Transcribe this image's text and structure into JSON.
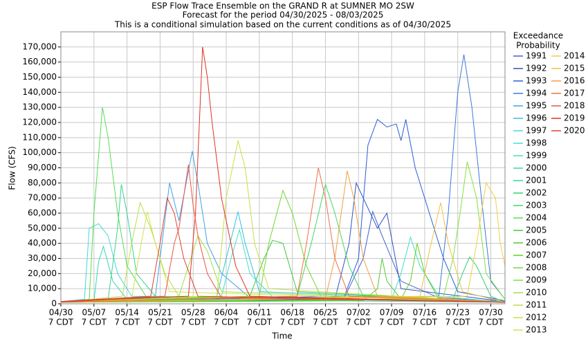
{
  "chart_data": {
    "type": "line",
    "title": "ESP Flow Trace Ensemble on the GRAND R at SUMNER MO 2SW",
    "subtitle": [
      "Forecast for the period 04/30/2025 - 08/03/2025",
      "This is a conditional simulation based on the current conditions as of 04/30/2025"
    ],
    "xlabel": "Time",
    "ylabel": "Flow (CFS)",
    "legend_title": [
      "Exceedance",
      "Probability"
    ],
    "grid": true,
    "xlim": [
      0,
      94
    ],
    "ylim": [
      0,
      180000
    ],
    "xtick_sublabel": "7 CDT",
    "xticks": [
      {
        "value": 0,
        "label": "04/30"
      },
      {
        "value": 7,
        "label": "05/07"
      },
      {
        "value": 14,
        "label": "05/14"
      },
      {
        "value": 21,
        "label": "05/21"
      },
      {
        "value": 28,
        "label": "05/28"
      },
      {
        "value": 35,
        "label": "06/04"
      },
      {
        "value": 42,
        "label": "06/11"
      },
      {
        "value": 49,
        "label": "06/18"
      },
      {
        "value": 56,
        "label": "06/25"
      },
      {
        "value": 63,
        "label": "07/02"
      },
      {
        "value": 70,
        "label": "07/09"
      },
      {
        "value": 77,
        "label": "07/16"
      },
      {
        "value": 84,
        "label": "07/23"
      },
      {
        "value": 91,
        "label": "07/30"
      }
    ],
    "yticks": [
      0,
      {
        "value": 10000,
        "label": "10,000"
      },
      {
        "value": 20000,
        "label": "20,000"
      },
      {
        "value": 30000,
        "label": "30,000"
      },
      {
        "value": 40000,
        "label": "40,000"
      },
      {
        "value": 50000,
        "label": "50,000"
      },
      {
        "value": 60000,
        "label": "60,000"
      },
      {
        "value": 70000,
        "label": "70,000"
      },
      {
        "value": 80000,
        "label": "80,000"
      },
      {
        "value": 90000,
        "label": "90,000"
      },
      {
        "value": 100000,
        "label": "100,000"
      },
      {
        "value": 110000,
        "label": "110,000"
      },
      {
        "value": 120000,
        "label": "120,000"
      },
      {
        "value": 130000,
        "label": "130,000"
      },
      {
        "value": 140000,
        "label": "140,000"
      },
      {
        "value": 150000,
        "label": "150,000"
      },
      {
        "value": 160000,
        "label": "160,000"
      },
      {
        "value": 170000,
        "label": "170,000"
      }
    ],
    "series": [
      {
        "name": "1991",
        "color": "#4060d0",
        "x": [
          0,
          60,
          64,
          66,
          68,
          72,
          80,
          94
        ],
        "values": [
          1500,
          4000,
          30000,
          61000,
          45000,
          15000,
          4000,
          1500
        ]
      },
      {
        "name": "1992",
        "color": "#3050c0",
        "x": [
          0,
          58,
          61,
          62.5,
          64,
          67,
          69,
          72,
          94
        ],
        "values": [
          1500,
          3000,
          40000,
          80000,
          70000,
          50000,
          60000,
          10000,
          1500
        ]
      },
      {
        "name": "1993",
        "color": "#2a5ad8",
        "x": [
          0,
          60,
          63,
          65,
          67,
          69,
          71,
          72,
          73,
          75,
          78,
          81,
          84,
          94
        ],
        "values": [
          1500,
          5000,
          30000,
          105000,
          122000,
          117000,
          119000,
          108000,
          122000,
          90000,
          60000,
          30000,
          8000,
          2000
        ]
      },
      {
        "name": "1994",
        "color": "#3a78e0",
        "x": [
          0,
          80,
          82,
          84,
          85.3,
          87,
          89,
          91,
          94
        ],
        "values": [
          1500,
          5000,
          60000,
          140000,
          165000,
          130000,
          70000,
          15000,
          3000
        ]
      },
      {
        "name": "1995",
        "color": "#40a0e8",
        "x": [
          0,
          20,
          23,
          25,
          27.8,
          29,
          31,
          34,
          40,
          94
        ],
        "values": [
          1500,
          5000,
          80000,
          55000,
          101000,
          80000,
          40000,
          20000,
          4000,
          1500
        ]
      },
      {
        "name": "1996",
        "color": "#30c0e0",
        "x": [
          0,
          33,
          35,
          37.5,
          39,
          42,
          94
        ],
        "values": [
          1500,
          5000,
          30000,
          61000,
          40000,
          8000,
          1500
        ]
      },
      {
        "name": "1997",
        "color": "#40d8e0",
        "x": [
          0,
          5,
          6,
          8,
          10,
          12,
          15,
          94
        ],
        "values": [
          1500,
          3000,
          50000,
          53000,
          45000,
          20000,
          5000,
          1500
        ]
      },
      {
        "name": "1998",
        "color": "#40e0d0",
        "x": [
          0,
          34,
          36,
          37.8,
          40,
          45,
          94
        ],
        "values": [
          1000,
          5000,
          30000,
          49000,
          20000,
          4000,
          1000
        ]
      },
      {
        "name": "1999",
        "color": "#40e0c0",
        "x": [
          0,
          70,
          72,
          74,
          76,
          80,
          94
        ],
        "values": [
          1000,
          3000,
          20000,
          44000,
          25000,
          5000,
          1000
        ]
      },
      {
        "name": "2000",
        "color": "#30d8b0",
        "x": [
          0,
          7,
          8,
          9,
          11,
          14,
          94
        ],
        "values": [
          1000,
          2000,
          28000,
          38000,
          15000,
          3000,
          1000
        ]
      },
      {
        "name": "2001",
        "color": "#30d890",
        "x": [
          0,
          10,
          12,
          12.8,
          14,
          16,
          20,
          94
        ],
        "values": [
          1000,
          3000,
          50000,
          79000,
          60000,
          20000,
          5000,
          1000
        ]
      },
      {
        "name": "2002",
        "color": "#30d070",
        "x": [
          0,
          83,
          85,
          86.5,
          88,
          91,
          94
        ],
        "values": [
          1000,
          3000,
          20000,
          31000,
          25000,
          5000,
          1000
        ]
      },
      {
        "name": "2003",
        "color": "#40d860",
        "x": [
          0,
          50,
          53,
          56,
          58,
          61,
          64,
          94
        ],
        "values": [
          1000,
          5000,
          40000,
          79000,
          60000,
          25000,
          5000,
          1000
        ]
      },
      {
        "name": "2004",
        "color": "#50e050",
        "x": [
          0,
          6,
          7,
          8.8,
          10,
          12,
          14,
          18,
          94
        ],
        "values": [
          1000,
          3000,
          60000,
          130000,
          110000,
          60000,
          25000,
          5000,
          1000
        ]
      },
      {
        "name": "2005",
        "color": "#40c840",
        "x": [
          0,
          40,
          43,
          44.8,
          47,
          50,
          94
        ],
        "values": [
          1000,
          5000,
          30000,
          42000,
          40000,
          8000,
          1000
        ]
      },
      {
        "name": "2006",
        "color": "#50c830",
        "x": [
          0,
          64,
          67,
          68,
          69,
          72,
          94
        ],
        "values": [
          1000,
          2000,
          10000,
          30000,
          15000,
          3000,
          1000
        ]
      },
      {
        "name": "2007",
        "color": "#60d020",
        "x": [
          0,
          72,
          74,
          75.4,
          77,
          80,
          94
        ],
        "values": [
          1000,
          3000,
          15000,
          40000,
          20000,
          3000,
          1000
        ]
      },
      {
        "name": "2008",
        "color": "#70d830",
        "x": [
          0,
          42,
          44,
          47,
          49,
          52,
          55,
          94
        ],
        "values": [
          1000,
          5000,
          40000,
          75000,
          60000,
          25000,
          5000,
          1000
        ]
      },
      {
        "name": "2009",
        "color": "#80e040",
        "x": [
          0,
          81,
          83,
          84.5,
          86,
          88,
          90,
          94
        ],
        "values": [
          1000,
          5000,
          30000,
          60000,
          94000,
          70000,
          20000,
          3000
        ]
      },
      {
        "name": "2010",
        "color": "#a0e040",
        "x": [
          0,
          25,
          27,
          29,
          31,
          34,
          94
        ],
        "values": [
          1000,
          5000,
          25000,
          45000,
          35000,
          8000,
          1000
        ]
      },
      {
        "name": "2011",
        "color": "#b8e040",
        "x": [
          0,
          13,
          15,
          16.8,
          19,
          22,
          25,
          94
        ],
        "values": [
          1000,
          5000,
          40000,
          67000,
          50000,
          20000,
          5000,
          1000
        ]
      },
      {
        "name": "2012",
        "color": "#c8e040",
        "x": [
          0,
          33,
          35,
          37.5,
          39,
          41,
          44,
          94
        ],
        "values": [
          1000,
          5000,
          70000,
          108000,
          90000,
          40000,
          10000,
          1000
        ]
      },
      {
        "name": "2013",
        "color": "#d8e048",
        "x": [
          0,
          15,
          17,
          18.3,
          20,
          23,
          94
        ],
        "values": [
          1000,
          4000,
          40000,
          61000,
          40000,
          8000,
          1000
        ]
      },
      {
        "name": "2014",
        "color": "#f0d040",
        "x": [
          0,
          86,
          88,
          90,
          92,
          93,
          94
        ],
        "values": [
          1000,
          5000,
          40000,
          80000,
          70000,
          40000,
          25000
        ]
      },
      {
        "name": "2015",
        "color": "#f0c040",
        "x": [
          0,
          76,
          78,
          80.4,
          82,
          85,
          94
        ],
        "values": [
          1000,
          5000,
          35000,
          67000,
          40000,
          8000,
          1000
        ]
      },
      {
        "name": "2016",
        "color": "#f0a040",
        "x": [
          0,
          56,
          58,
          60.6,
          62,
          64,
          67,
          94
        ],
        "values": [
          1000,
          4000,
          30000,
          88000,
          70000,
          30000,
          5000,
          1000
        ]
      },
      {
        "name": "2017",
        "color": "#f07040",
        "x": [
          0,
          50,
          52,
          54.5,
          56,
          58,
          61,
          94
        ],
        "values": [
          1000,
          5000,
          40000,
          90000,
          70000,
          30000,
          5000,
          1000
        ]
      },
      {
        "name": "2018",
        "color": "#f05040",
        "x": [
          0,
          22,
          24,
          25,
          27,
          28,
          29,
          31,
          34,
          94
        ],
        "values": [
          1000,
          5000,
          40000,
          50000,
          92000,
          65000,
          45000,
          20000,
          4000,
          1000
        ]
      },
      {
        "name": "2019",
        "color": "#e03020",
        "x": [
          0,
          27,
          28.5,
          30,
          31,
          32,
          34,
          37,
          40,
          94
        ],
        "values": [
          1500,
          5000,
          60000,
          170000,
          150000,
          120000,
          70000,
          25000,
          5000,
          1000
        ]
      },
      {
        "name": "2020",
        "color": "#e04030",
        "x": [
          0,
          19,
          21,
          22.5,
          24,
          26,
          29,
          94
        ],
        "values": [
          1500,
          5000,
          40000,
          70000,
          60000,
          30000,
          5000,
          1000
        ]
      }
    ]
  }
}
